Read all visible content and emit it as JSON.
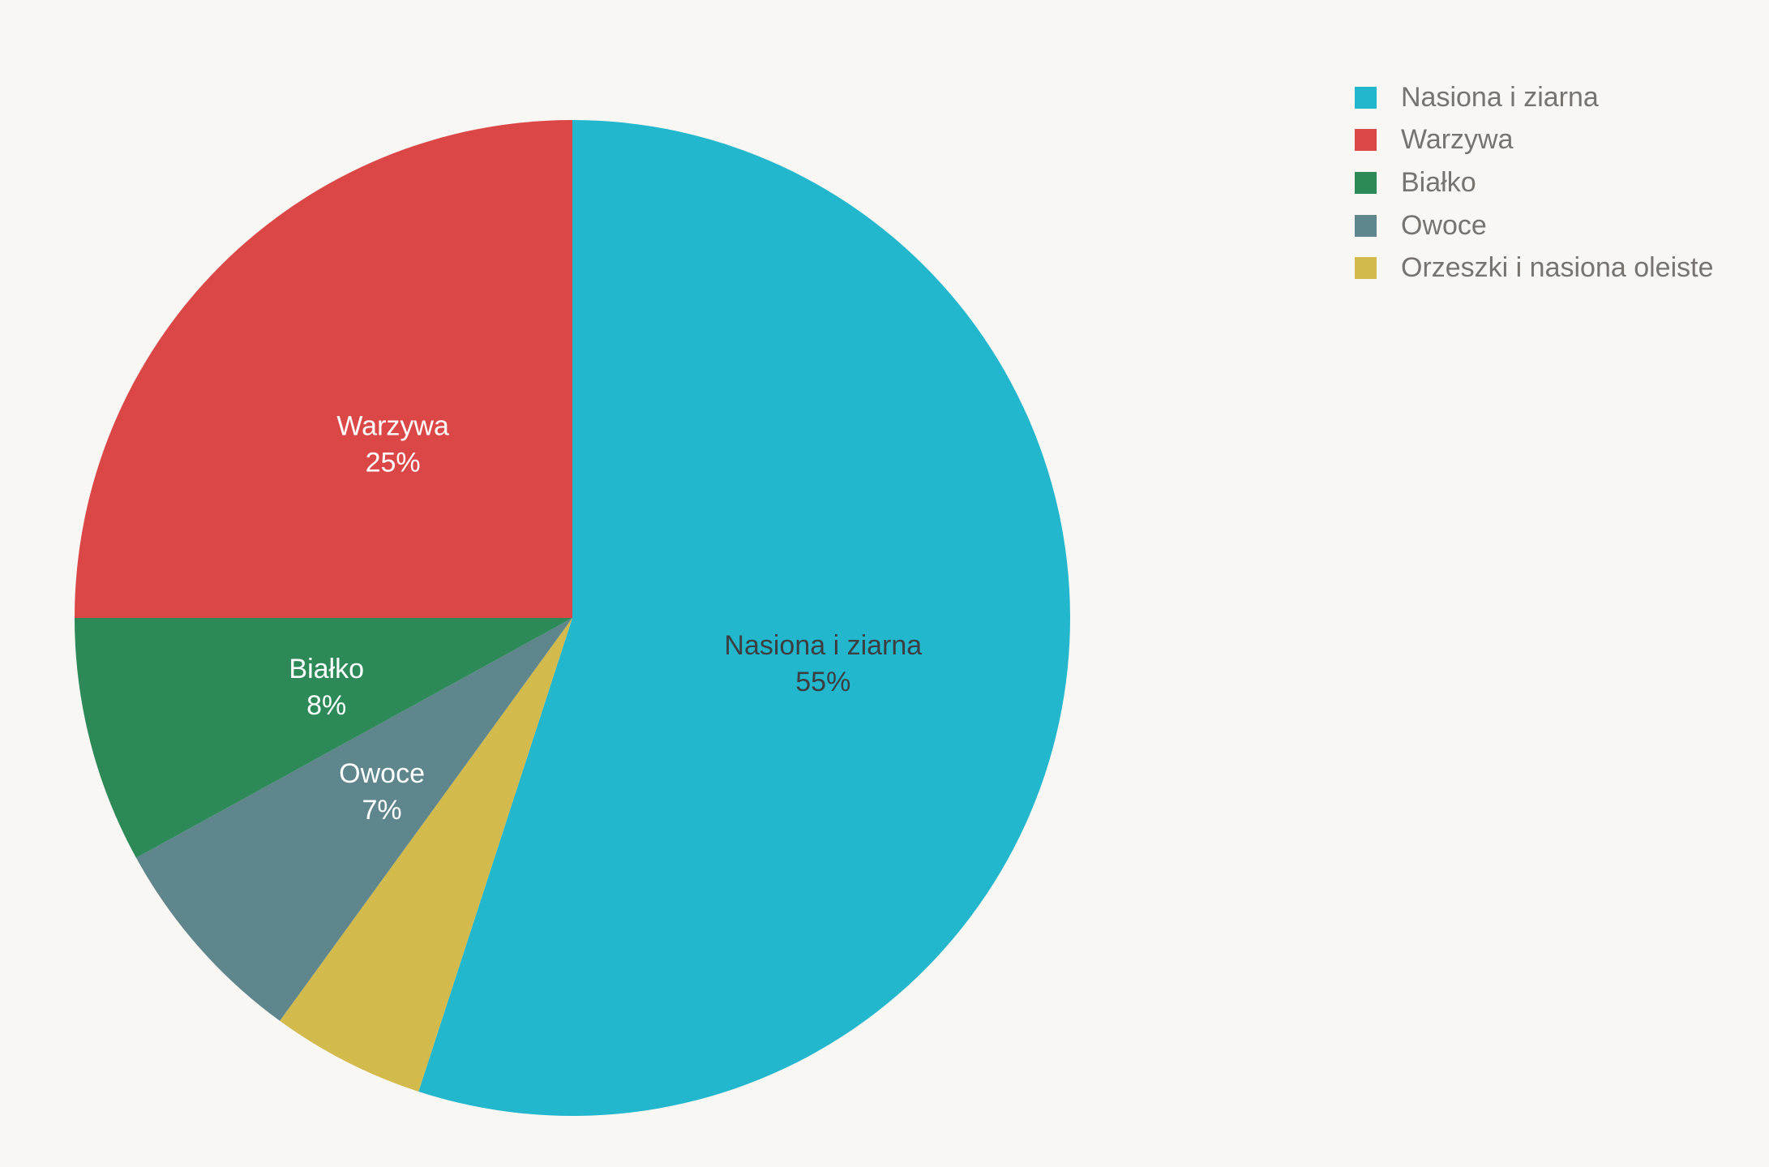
{
  "chart_data": {
    "type": "pie",
    "title": "",
    "start_angle": "12 o'clock",
    "direction": "clockwise",
    "legend_position": "top-right",
    "slices": [
      {
        "label": "Nasiona i ziarna",
        "value": 55,
        "value_text": "55%",
        "color": "#22b7cd",
        "text_color": "#3b3f42",
        "show_label": true
      },
      {
        "label": "Orzeszki i nasiona oleiste",
        "value": 5,
        "value_text": "5%",
        "color": "#d2ba4c",
        "text_color": "#ffffff",
        "show_label": false
      },
      {
        "label": "Owoce",
        "value": 7,
        "value_text": "7%",
        "color": "#5e868c",
        "text_color": "#ffffff",
        "show_label": true
      },
      {
        "label": "Białko",
        "value": 8,
        "value_text": "8%",
        "color": "#2d8a58",
        "text_color": "#ffffff",
        "show_label": true
      },
      {
        "label": "Warzywa",
        "value": 25,
        "value_text": "25%",
        "color": "#db4747",
        "text_color": "#ffffff",
        "show_label": true
      }
    ],
    "legend": [
      {
        "label": "Nasiona i ziarna",
        "color": "#22b7cd"
      },
      {
        "label": "Warzywa",
        "color": "#db4747"
      },
      {
        "label": "Białko",
        "color": "#2d8a58"
      },
      {
        "label": "Owoce",
        "color": "#5e868c"
      },
      {
        "label": "Orzeszki i nasiona oleiste",
        "color": "#d2ba4c"
      }
    ]
  }
}
